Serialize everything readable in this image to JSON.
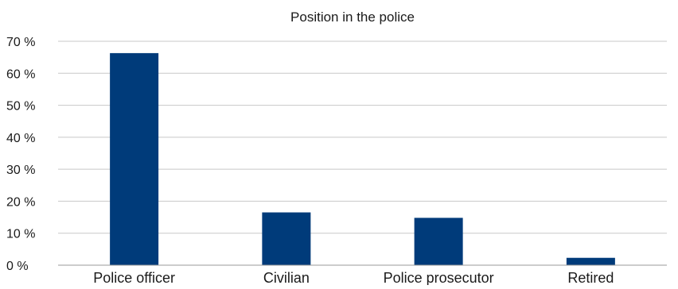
{
  "chart_data": {
    "type": "bar",
    "title": "Position in the police",
    "xlabel": "",
    "ylabel": "",
    "categories": [
      "Police officer",
      "Civilian",
      "Police prosecutor",
      "Retired"
    ],
    "values": [
      66.3,
      16.5,
      14.8,
      2.3
    ],
    "ylim": [
      0,
      70
    ],
    "yticks": [
      0,
      10,
      20,
      30,
      40,
      50,
      60,
      70
    ],
    "ytick_labels": [
      "0 %",
      "10 %",
      "20 %",
      "30 %",
      "40 %",
      "50 %",
      "60 %",
      "70 %"
    ],
    "grid": true,
    "legend": "none",
    "colors": {
      "bar": "#003b7a",
      "grid": "#c8c8c8",
      "text": "#1a1a1a"
    }
  }
}
